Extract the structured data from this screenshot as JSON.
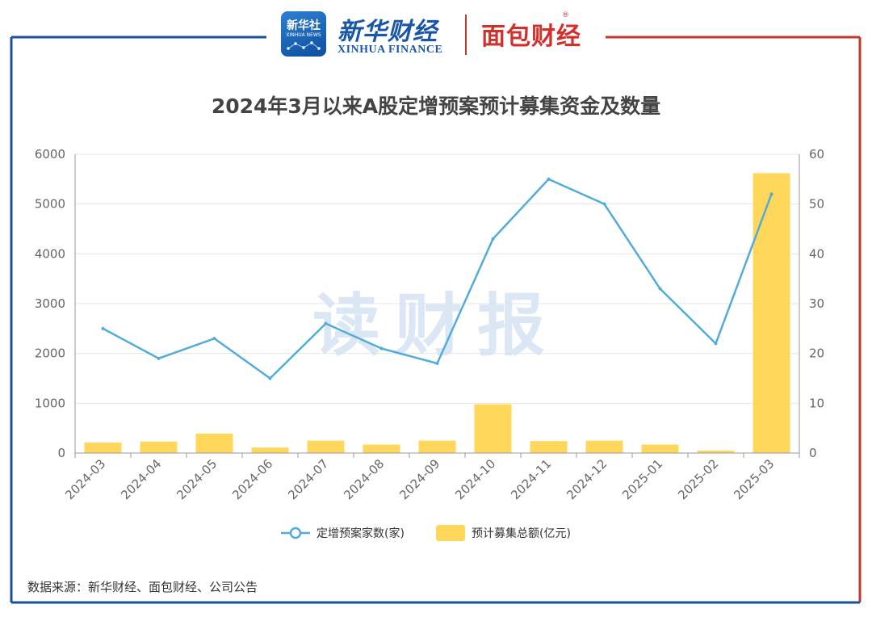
{
  "header": {
    "xinhua_icon_text": "新华社",
    "xinhua_icon_sub": "XINHUA NEWS",
    "xinhua_cn": "新华财经",
    "xinhua_en": "XINHUA FINANCE",
    "mianbao": "面包财经",
    "reg_mark": "®"
  },
  "colors": {
    "line": "#52acdb",
    "bar": "#ffd75a",
    "frame_left": "#1e4f9c",
    "frame_right": "#c0392b"
  },
  "watermark": "读财报",
  "source": "数据来源：新华财经、面包财经、公司公告",
  "chart_data": {
    "type": "bar",
    "title": "2024年3月以来A股定增预案预计募集资金及数量",
    "categories": [
      "2024-03",
      "2024-04",
      "2024-05",
      "2024-06",
      "2024-07",
      "2024-08",
      "2024-09",
      "2024-10",
      "2024-11",
      "2024-12",
      "2025-01",
      "2025-02",
      "2025-03"
    ],
    "left_axis": {
      "min": 0,
      "max": 6000,
      "ticks": [
        0,
        1000,
        2000,
        3000,
        4000,
        5000,
        6000
      ]
    },
    "right_axis": {
      "min": 0,
      "max": 60,
      "ticks": [
        0,
        10,
        20,
        30,
        40,
        50,
        60
      ]
    },
    "grid": true,
    "legend_position": "bottom",
    "series": [
      {
        "name": "定增预案家数(家)",
        "type": "line",
        "axis": "right",
        "values": [
          25,
          19,
          23,
          15,
          26,
          21,
          18,
          43,
          55,
          50,
          33,
          22,
          52
        ]
      },
      {
        "name": "预计募集总额(亿元)",
        "type": "bar",
        "axis": "left",
        "values": [
          210,
          230,
          390,
          110,
          250,
          170,
          250,
          980,
          240,
          250,
          170,
          50,
          5620
        ]
      }
    ]
  }
}
